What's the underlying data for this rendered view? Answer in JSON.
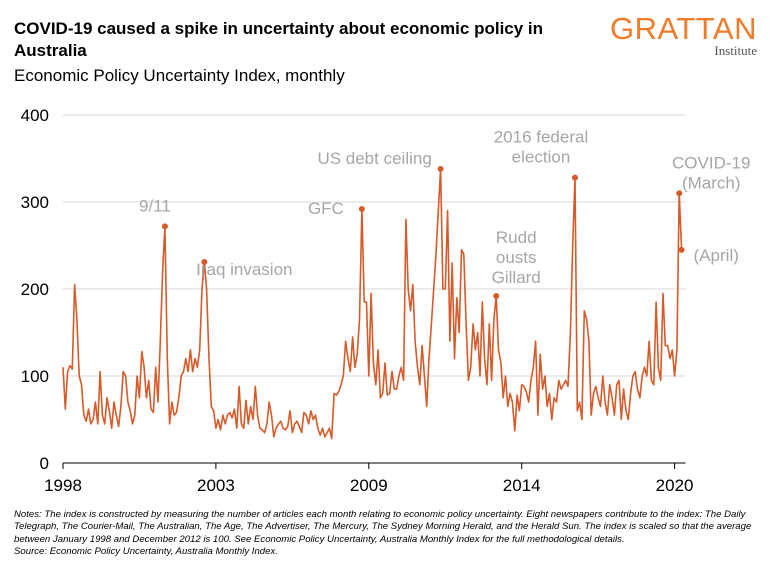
{
  "header": {
    "title": "COVID-19 caused a spike in uncertainty about economic policy in Australia",
    "subtitle": "Economic Policy Uncertainty Index, monthly",
    "logo": {
      "name": "GRATTAN",
      "sub": "Institute",
      "color": "#f07c29"
    }
  },
  "footer": {
    "notes": "Notes: The index is constructed by measuring the number of articles each month relating to economic policy uncertainty. Eight newspapers contribute to the index: The Daily Telegraph, The Courier-Mail, The Australian, The Age, The Advertiser, The Mercury, The Sydney Morning Herald, and the Herald Sun. The index is scaled so that the average between January 1998 and December 2012 is 100. See Economic Policy Uncertainty, Australia Monthly Index for the full methodological details.",
    "source": "Source: Economic Policy Uncertainty, Australia Monthly Index."
  },
  "chart_data": {
    "type": "line",
    "title": "Economic Policy Uncertainty Index, monthly",
    "xlabel": "",
    "ylabel": "",
    "ylim": [
      0,
      400
    ],
    "yticks": [
      "0",
      "100",
      "200",
      "300",
      "400"
    ],
    "xticks": [
      {
        "label": "1998",
        "date": "1998-01"
      },
      {
        "label": "2003",
        "date": "2003-07"
      },
      {
        "label": "2009",
        "date": "2009-01"
      },
      {
        "label": "2014",
        "date": "2014-07"
      },
      {
        "label": "2020",
        "date": "2020-01"
      }
    ],
    "grid": true,
    "line_color": "#d65a2a",
    "annotation_color": "#a6a6a6",
    "start": "1998-01",
    "frequency": "monthly",
    "values": [
      110,
      62,
      105,
      112,
      108,
      205,
      165,
      100,
      90,
      55,
      48,
      62,
      45,
      50,
      70,
      45,
      105,
      55,
      45,
      75,
      60,
      40,
      70,
      55,
      42,
      65,
      105,
      100,
      70,
      60,
      45,
      55,
      100,
      75,
      128,
      110,
      75,
      95,
      62,
      58,
      110,
      70,
      140,
      220,
      272,
      120,
      45,
      70,
      55,
      58,
      75,
      100,
      105,
      120,
      105,
      130,
      105,
      120,
      110,
      130,
      200,
      231,
      200,
      120,
      65,
      60,
      40,
      50,
      38,
      55,
      45,
      55,
      58,
      52,
      62,
      40,
      88,
      45,
      40,
      72,
      45,
      65,
      50,
      88,
      55,
      40,
      38,
      35,
      45,
      70,
      55,
      30,
      40,
      45,
      48,
      40,
      38,
      42,
      60,
      35,
      45,
      48,
      42,
      35,
      58,
      55,
      45,
      60,
      50,
      55,
      40,
      32,
      40,
      30,
      35,
      40,
      28,
      80,
      78,
      82,
      90,
      100,
      140,
      120,
      105,
      145,
      110,
      125,
      165,
      292,
      185,
      185,
      100,
      195,
      115,
      90,
      130,
      75,
      80,
      115,
      78,
      80,
      105,
      85,
      85,
      100,
      110,
      95,
      280,
      200,
      175,
      205,
      140,
      110,
      90,
      135,
      100,
      65,
      120,
      160,
      200,
      240,
      290,
      338,
      200,
      200,
      290,
      140,
      230,
      120,
      190,
      150,
      245,
      240,
      160,
      95,
      110,
      160,
      130,
      150,
      100,
      185,
      120,
      90,
      160,
      95,
      165,
      192,
      130,
      115,
      75,
      100,
      65,
      80,
      70,
      37,
      78,
      60,
      90,
      88,
      82,
      70,
      95,
      110,
      140,
      55,
      125,
      85,
      100,
      65,
      80,
      50,
      75,
      70,
      95,
      85,
      90,
      95,
      88,
      150,
      250,
      328,
      60,
      70,
      50,
      175,
      165,
      140,
      55,
      80,
      88,
      75,
      65,
      100,
      70,
      55,
      90,
      75,
      55,
      90,
      95,
      50,
      85,
      60,
      50,
      80,
      100,
      105,
      85,
      75,
      100,
      110,
      100,
      140,
      95,
      90,
      185,
      110,
      95,
      195,
      135,
      135,
      120,
      130,
      100,
      130,
      310,
      245
    ],
    "annotations": [
      {
        "date": "2001-09",
        "value": 272,
        "lines": [
          "9/11"
        ]
      },
      {
        "date": "2003-02",
        "value": 231,
        "lines": [
          "Iraq invasion"
        ]
      },
      {
        "date": "2008-10",
        "value": 292,
        "lines": [
          "GFC"
        ]
      },
      {
        "date": "2011-08",
        "value": 338,
        "lines": [
          "US debt ceiling"
        ]
      },
      {
        "date": "2013-08",
        "value": 192,
        "lines": [
          "Rudd",
          "ousts",
          "Gillard"
        ]
      },
      {
        "date": "2016-06",
        "value": 328,
        "lines": [
          "2016 federal",
          "election"
        ]
      },
      {
        "date": "2020-03",
        "value": 310,
        "lines": [
          "COVID-19",
          "(March)"
        ]
      },
      {
        "date": "2020-04",
        "value": 245,
        "lines": [
          "(April)"
        ]
      }
    ]
  }
}
